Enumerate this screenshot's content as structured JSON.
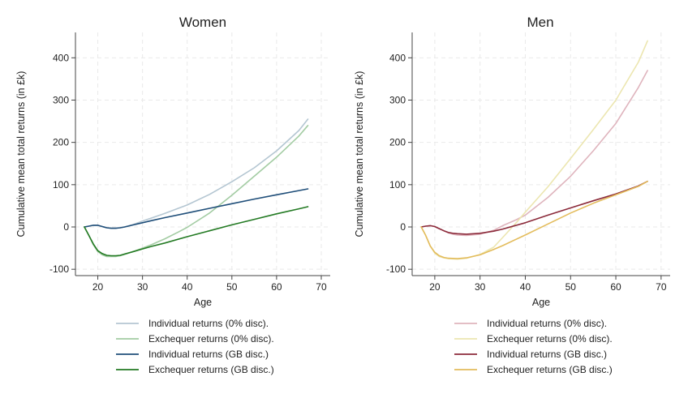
{
  "chart_data": [
    {
      "type": "line",
      "title": "Women",
      "xlabel": "Age",
      "ylabel": "Cumulative mean total returns (in £k)",
      "xlim": [
        15,
        72
      ],
      "ylim": [
        -115,
        460
      ],
      "xticks": [
        "20",
        "30",
        "40",
        "50",
        "60",
        "70"
      ],
      "yticks": [
        "-100",
        "0",
        "100",
        "200",
        "300",
        "400"
      ],
      "grid": true,
      "legend_position": "bottom",
      "series": [
        {
          "name": "Individual returns (0% disc).",
          "color": "#b4c6d2",
          "points": [
            [
              17,
              0
            ],
            [
              18,
              2
            ],
            [
              19,
              4
            ],
            [
              20,
              4
            ],
            [
              21,
              1
            ],
            [
              22,
              -2
            ],
            [
              23,
              -3
            ],
            [
              24,
              -3
            ],
            [
              25,
              -2
            ],
            [
              26,
              0
            ],
            [
              28,
              6
            ],
            [
              30,
              14
            ],
            [
              32,
              21
            ],
            [
              35,
              32
            ],
            [
              38,
              44
            ],
            [
              40,
              52
            ],
            [
              45,
              77
            ],
            [
              50,
              107
            ],
            [
              55,
              140
            ],
            [
              60,
              180
            ],
            [
              65,
              228
            ],
            [
              67,
              255
            ]
          ]
        },
        {
          "name": "Exchequer returns (0% disc).",
          "color": "#a3cca3",
          "points": [
            [
              17,
              0
            ],
            [
              18,
              -20
            ],
            [
              19,
              -42
            ],
            [
              20,
              -58
            ],
            [
              21,
              -66
            ],
            [
              22,
              -70
            ],
            [
              23,
              -70
            ],
            [
              24,
              -70
            ],
            [
              25,
              -68
            ],
            [
              26,
              -65
            ],
            [
              28,
              -58
            ],
            [
              30,
              -50
            ],
            [
              32,
              -42
            ],
            [
              35,
              -28
            ],
            [
              38,
              -12
            ],
            [
              40,
              -1
            ],
            [
              45,
              33
            ],
            [
              50,
              75
            ],
            [
              55,
              120
            ],
            [
              60,
              165
            ],
            [
              65,
              215
            ],
            [
              67,
              240
            ]
          ]
        },
        {
          "name": "Individual returns (GB disc.)",
          "color": "#1f4e79",
          "points": [
            [
              17,
              0
            ],
            [
              18,
              2
            ],
            [
              19,
              4
            ],
            [
              20,
              4
            ],
            [
              21,
              1
            ],
            [
              22,
              -2
            ],
            [
              23,
              -3
            ],
            [
              24,
              -3
            ],
            [
              25,
              -2
            ],
            [
              26,
              0
            ],
            [
              28,
              5
            ],
            [
              30,
              10
            ],
            [
              32,
              15
            ],
            [
              35,
              22
            ],
            [
              40,
              33
            ],
            [
              45,
              44
            ],
            [
              50,
              55
            ],
            [
              55,
              66
            ],
            [
              60,
              76
            ],
            [
              65,
              86
            ],
            [
              67,
              90
            ]
          ]
        },
        {
          "name": "Exchequer returns (GB disc.)",
          "color": "#237a23",
          "points": [
            [
              17,
              0
            ],
            [
              18,
              -20
            ],
            [
              19,
              -40
            ],
            [
              20,
              -56
            ],
            [
              21,
              -63
            ],
            [
              22,
              -67
            ],
            [
              23,
              -68
            ],
            [
              24,
              -68
            ],
            [
              25,
              -67
            ],
            [
              26,
              -64
            ],
            [
              28,
              -58
            ],
            [
              30,
              -52
            ],
            [
              32,
              -46
            ],
            [
              35,
              -38
            ],
            [
              40,
              -23
            ],
            [
              45,
              -9
            ],
            [
              50,
              5
            ],
            [
              55,
              18
            ],
            [
              60,
              31
            ],
            [
              65,
              43
            ],
            [
              67,
              48
            ]
          ]
        }
      ]
    },
    {
      "type": "line",
      "title": "Men",
      "xlabel": "Age",
      "ylabel": "Cumulative mean total returns (in £k)",
      "xlim": [
        15,
        72
      ],
      "ylim": [
        -115,
        460
      ],
      "xticks": [
        "20",
        "30",
        "40",
        "50",
        "60",
        "70"
      ],
      "yticks": [
        "-100",
        "0",
        "100",
        "200",
        "300",
        "400"
      ],
      "grid": true,
      "legend_position": "bottom",
      "series": [
        {
          "name": "Individual returns (0% disc).",
          "color": "#dfb4bd",
          "points": [
            [
              17,
              0
            ],
            [
              18,
              2
            ],
            [
              19,
              3
            ],
            [
              20,
              1
            ],
            [
              21,
              -4
            ],
            [
              22,
              -9
            ],
            [
              23,
              -14
            ],
            [
              24,
              -17
            ],
            [
              25,
              -19
            ],
            [
              27,
              -20
            ],
            [
              30,
              -17
            ],
            [
              33,
              -8
            ],
            [
              35,
              3
            ],
            [
              38,
              17
            ],
            [
              40,
              28
            ],
            [
              45,
              70
            ],
            [
              50,
              120
            ],
            [
              55,
              180
            ],
            [
              60,
              245
            ],
            [
              65,
              330
            ],
            [
              67,
              370
            ]
          ]
        },
        {
          "name": "Exchequer returns (0% disc).",
          "color": "#ece6b0",
          "points": [
            [
              17,
              0
            ],
            [
              18,
              -20
            ],
            [
              19,
              -45
            ],
            [
              20,
              -62
            ],
            [
              21,
              -70
            ],
            [
              22,
              -73
            ],
            [
              23,
              -75
            ],
            [
              25,
              -76
            ],
            [
              27,
              -74
            ],
            [
              30,
              -65
            ],
            [
              33,
              -48
            ],
            [
              35,
              -25
            ],
            [
              38,
              10
            ],
            [
              40,
              35
            ],
            [
              45,
              95
            ],
            [
              50,
              162
            ],
            [
              55,
              230
            ],
            [
              60,
              300
            ],
            [
              65,
              390
            ],
            [
              67,
              440
            ]
          ]
        },
        {
          "name": "Individual returns (GB disc.)",
          "color": "#8b2a3a",
          "points": [
            [
              17,
              0
            ],
            [
              18,
              2
            ],
            [
              19,
              3
            ],
            [
              20,
              1
            ],
            [
              21,
              -4
            ],
            [
              22,
              -9
            ],
            [
              23,
              -13
            ],
            [
              24,
              -15
            ],
            [
              25,
              -16
            ],
            [
              27,
              -17
            ],
            [
              30,
              -15
            ],
            [
              33,
              -10
            ],
            [
              35,
              -5
            ],
            [
              40,
              10
            ],
            [
              45,
              28
            ],
            [
              50,
              45
            ],
            [
              55,
              62
            ],
            [
              60,
              78
            ],
            [
              65,
              97
            ],
            [
              67,
              108
            ]
          ]
        },
        {
          "name": "Exchequer returns (GB disc.)",
          "color": "#e3bc5c",
          "points": [
            [
              17,
              0
            ],
            [
              18,
              -20
            ],
            [
              19,
              -45
            ],
            [
              20,
              -60
            ],
            [
              21,
              -68
            ],
            [
              22,
              -72
            ],
            [
              23,
              -74
            ],
            [
              25,
              -75
            ],
            [
              27,
              -73
            ],
            [
              30,
              -66
            ],
            [
              33,
              -53
            ],
            [
              35,
              -44
            ],
            [
              40,
              -19
            ],
            [
              45,
              7
            ],
            [
              50,
              33
            ],
            [
              55,
              56
            ],
            [
              60,
              76
            ],
            [
              65,
              96
            ],
            [
              67,
              108
            ]
          ]
        }
      ]
    }
  ]
}
